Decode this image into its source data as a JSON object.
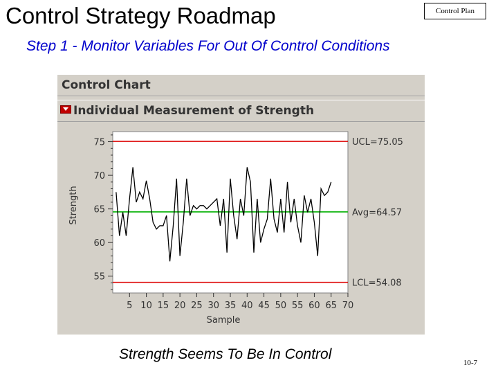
{
  "slide": {
    "title": "Control Strategy Roadmap",
    "tag": "Control Plan",
    "subtitle": "Step 1 - Monitor Variables For Out Of Control Conditions",
    "caption": "Strength Seems To Be In Control",
    "page": "10-7"
  },
  "panel": {
    "header": "Control Chart",
    "subheader": "Individual Measurement of Strength"
  },
  "colors": {
    "ucl_lcl": "#dd0000",
    "avg": "#22bb22",
    "series": "#000000",
    "subtitle": "#0000cc"
  },
  "chart_data": {
    "type": "line",
    "xlabel": "Sample",
    "ylabel": "Strength",
    "xlim": [
      0,
      70
    ],
    "ylim": [
      52.5,
      76.5
    ],
    "x_ticks": [
      5,
      10,
      15,
      20,
      25,
      30,
      35,
      40,
      45,
      50,
      55,
      60,
      65,
      70
    ],
    "y_ticks": [
      55,
      60,
      65,
      70,
      75
    ],
    "control_limits": [
      {
        "label": "UCL=75.05",
        "value": 75.05,
        "color": "#dd0000"
      },
      {
        "label": "Avg=64.57",
        "value": 64.57,
        "color": "#22bb22"
      },
      {
        "label": "LCL=54.08",
        "value": 54.08,
        "color": "#dd0000"
      }
    ],
    "series": [
      {
        "x": [
          1,
          2,
          3,
          4,
          5,
          6,
          7,
          8,
          9,
          10,
          11,
          12,
          13,
          14,
          15,
          16,
          17,
          18,
          19,
          20,
          21,
          22,
          23,
          24,
          25,
          26,
          27,
          28,
          29,
          30,
          31,
          32,
          33,
          34,
          35,
          36,
          37,
          38,
          39,
          40,
          41,
          42,
          43,
          44,
          45,
          46,
          47,
          48,
          49,
          50,
          51,
          52,
          53,
          54,
          55,
          56,
          57,
          58,
          59,
          60,
          61,
          62,
          63,
          64,
          65
        ],
        "values": [
          67.5,
          61,
          64.5,
          61,
          66.5,
          71.2,
          66,
          67.5,
          66.5,
          69.2,
          66.5,
          63,
          62,
          62.5,
          62.5,
          64,
          57.2,
          62.5,
          69.5,
          58,
          63,
          69.5,
          64,
          65.5,
          65,
          65.5,
          65.5,
          65,
          65.5,
          66,
          66.5,
          62.5,
          66.5,
          58.5,
          69.5,
          64,
          60.5,
          66.5,
          64,
          71.2,
          69,
          58.5,
          66.5,
          60,
          62,
          63.5,
          69.5,
          63.5,
          61.5,
          66.5,
          61.5,
          69,
          63,
          66.5,
          62.5,
          60,
          67,
          64.5,
          66.5,
          63,
          58,
          68,
          67,
          67.5,
          69
        ]
      }
    ]
  }
}
